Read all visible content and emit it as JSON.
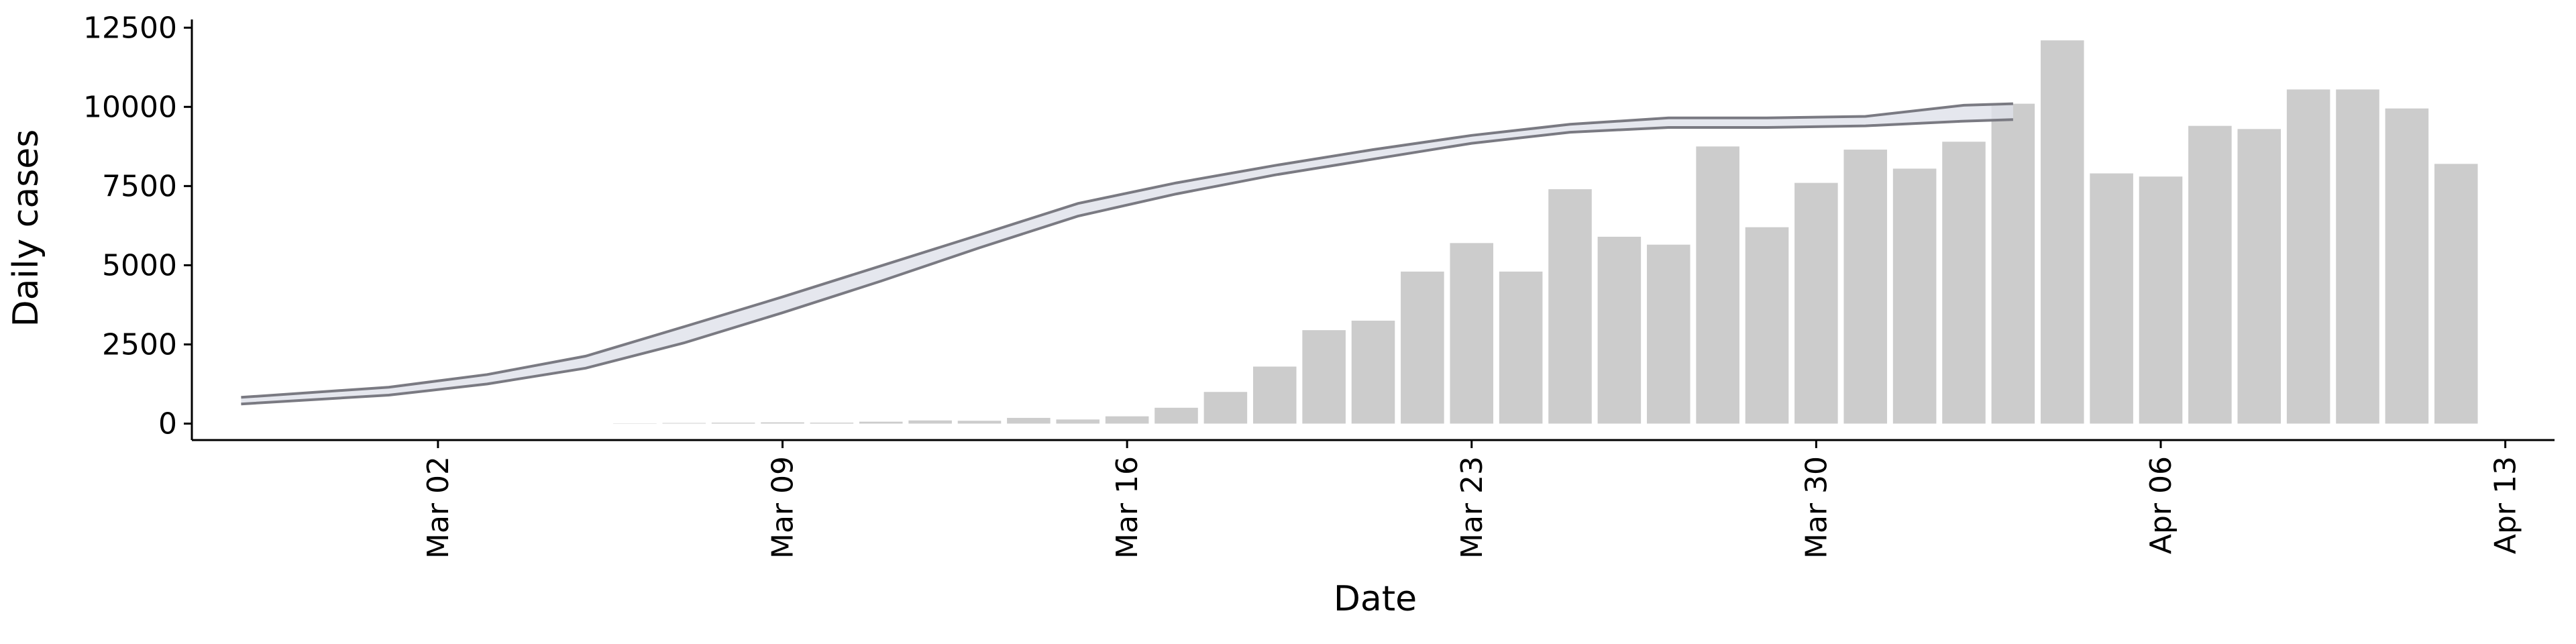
{
  "chart_data": {
    "type": "bar_band",
    "x_label": "Date",
    "y_label": "Daily cases",
    "x": [
      "Mar 06",
      "Mar 07",
      "Mar 08",
      "Mar 09",
      "Mar 10",
      "Mar 11",
      "Mar 12",
      "Mar 13",
      "Mar 14",
      "Mar 15",
      "Mar 16",
      "Mar 17",
      "Mar 18",
      "Mar 19",
      "Mar 20",
      "Mar 21",
      "Mar 22",
      "Mar 23",
      "Mar 24",
      "Mar 25",
      "Mar 26",
      "Mar 27",
      "Mar 28",
      "Mar 29",
      "Mar 30",
      "Mar 31",
      "Apr 01",
      "Apr 02",
      "Apr 03",
      "Apr 04",
      "Apr 05",
      "Apr 06",
      "Apr 07",
      "Apr 08",
      "Apr 09",
      "Apr 10",
      "Apr 11",
      "Apr 12"
    ],
    "values": [
      10,
      20,
      30,
      40,
      30,
      60,
      100,
      90,
      180,
      130,
      230,
      500,
      1000,
      1800,
      2950,
      3250,
      4800,
      5700,
      4800,
      7400,
      5900,
      5650,
      8750,
      6200,
      7600,
      8650,
      8050,
      8900,
      10100,
      12100,
      7900,
      7800,
      9400,
      9300,
      10550,
      10550,
      9950,
      8200
    ],
    "color": "#cccccc",
    "band": {
      "x": [
        "Feb 27",
        "Mar 01",
        "Mar 03",
        "Mar 05",
        "Mar 07",
        "Mar 09",
        "Mar 11",
        "Mar 13",
        "Mar 15",
        "Mar 17",
        "Mar 19",
        "Mar 21",
        "Mar 23",
        "Mar 25",
        "Mar 27",
        "Mar 29",
        "Mar 31",
        "Apr 02",
        "Apr 03"
      ],
      "upper": [
        830,
        1150,
        1550,
        2130,
        3060,
        4000,
        4980,
        5960,
        6950,
        7600,
        8150,
        8650,
        9100,
        9450,
        9650,
        9650,
        9700,
        10050,
        10100
      ],
      "lower": [
        620,
        900,
        1250,
        1750,
        2550,
        3500,
        4500,
        5550,
        6550,
        7250,
        7850,
        8350,
        8850,
        9200,
        9350,
        9350,
        9400,
        9550,
        9600
      ],
      "line_color": "#7a7a82",
      "fill_color": "#dfe1ea"
    },
    "xlim": [
      "Feb 26",
      "Apr 14"
    ],
    "xticks": [
      "Mar 02",
      "Mar 09",
      "Mar 16",
      "Mar 23",
      "Mar 30",
      "Apr 06",
      "Apr 13"
    ],
    "ylim": [
      -520,
      12760
    ],
    "yticks": [
      0,
      2500,
      5000,
      7500,
      10000,
      12500
    ]
  }
}
